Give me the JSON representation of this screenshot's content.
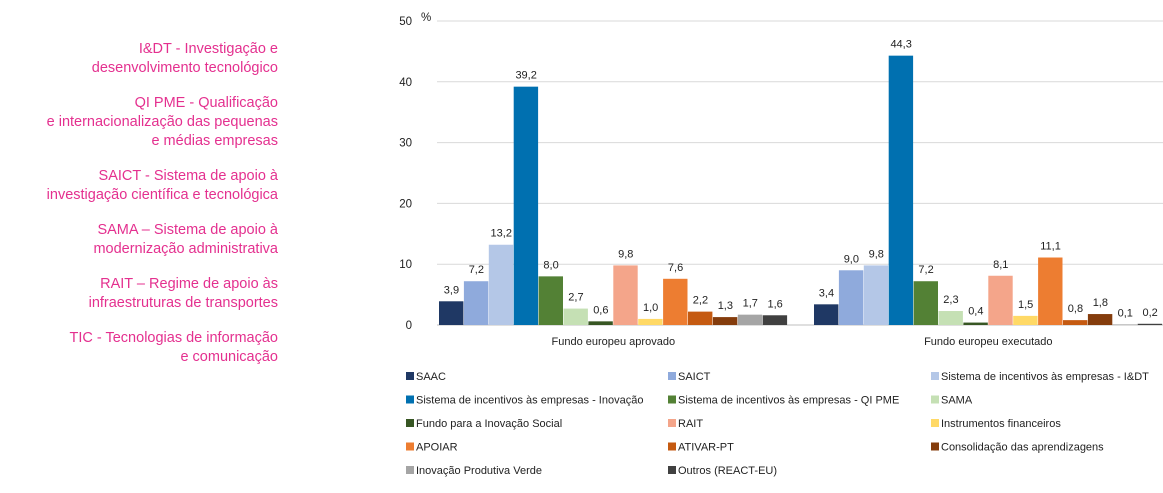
{
  "side_notes": [
    "I&DT - Investigação e\ndesenvolvimento tecnológico",
    "QI PME - Qualificação\ne internacionalização das pequenas\ne médias empresas",
    "SAICT - Sistema de apoio à\ninvestigação científica e tecnológica",
    "SAMA – Sistema de apoio à\nmodernização administrativa",
    "RAIT – Regime de apoio às\ninfraestruturas de transportes",
    "TIC - Tecnologias de informação\ne comunicação"
  ],
  "chart_data": {
    "type": "bar",
    "ylabel": "%",
    "ylim": [
      0,
      50
    ],
    "yticks": [
      0,
      10,
      20,
      30,
      40,
      50
    ],
    "grid": true,
    "legend_position": "bottom",
    "categories": [
      "Fundo europeu aprovado",
      "Fundo europeu executado"
    ],
    "series": [
      {
        "name": "SAAC",
        "values": [
          3.9,
          3.4
        ],
        "labels": [
          "3,9",
          "3,4"
        ],
        "color": "#1f3864"
      },
      {
        "name": "SAICT",
        "values": [
          7.2,
          9.0
        ],
        "labels": [
          "7,2",
          "9,0"
        ],
        "color": "#8faadc"
      },
      {
        "name": "Sistema de incentivos às empresas - I&DT",
        "values": [
          13.2,
          9.8
        ],
        "labels": [
          "13,2",
          "9,8"
        ],
        "color": "#b4c7e7"
      },
      {
        "name": "Sistema de incentivos às empresas - Inovação",
        "values": [
          39.2,
          44.3
        ],
        "labels": [
          "39,2",
          "44,3"
        ],
        "color": "#0070b0"
      },
      {
        "name": "Sistema de incentivos às empresas - QI PME",
        "values": [
          8.0,
          7.2
        ],
        "labels": [
          "8,0",
          "7,2"
        ],
        "color": "#538135"
      },
      {
        "name": "SAMA",
        "values": [
          2.7,
          2.3
        ],
        "labels": [
          "2,7",
          "2,3"
        ],
        "color": "#c5e0b4"
      },
      {
        "name": "Fundo para a Inovação Social",
        "values": [
          0.6,
          0.4
        ],
        "labels": [
          "0,6",
          "0,4"
        ],
        "color": "#375623"
      },
      {
        "name": "RAIT",
        "values": [
          9.8,
          8.1
        ],
        "labels": [
          "9,8",
          "8,1"
        ],
        "color": "#f4a58a"
      },
      {
        "name": "Instrumentos financeiros",
        "values": [
          1.0,
          1.5
        ],
        "labels": [
          "1,0",
          "1,5"
        ],
        "color": "#ffd966"
      },
      {
        "name": "APOIAR",
        "values": [
          7.6,
          11.1
        ],
        "labels": [
          "7,6",
          "11,1"
        ],
        "color": "#ed7d31"
      },
      {
        "name": "ATIVAR-PT",
        "values": [
          2.2,
          0.8
        ],
        "labels": [
          "2,2",
          "0,8"
        ],
        "color": "#c55a11"
      },
      {
        "name": "Consolidação das aprendizagens",
        "values": [
          1.3,
          1.8
        ],
        "labels": [
          "1,3",
          "1,8"
        ],
        "color": "#843c0c"
      },
      {
        "name": "Inovação Produtiva Verde",
        "values": [
          1.7,
          0.1
        ],
        "labels": [
          "1,7",
          "0,1"
        ],
        "color": "#a5a5a5"
      },
      {
        "name": "Outros (REACT-EU)",
        "values": [
          1.6,
          0.2
        ],
        "labels": [
          "1,6",
          "0,2"
        ],
        "color": "#404040"
      }
    ]
  }
}
